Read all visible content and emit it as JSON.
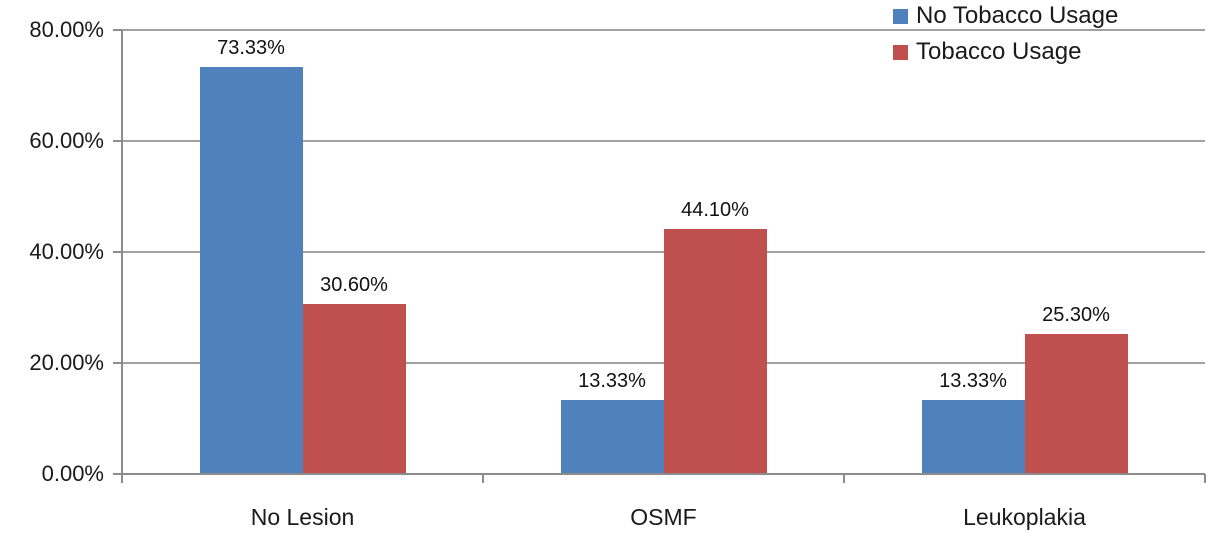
{
  "chart_data": {
    "type": "bar",
    "title": "",
    "categories": [
      "No Lesion",
      "OSMF",
      "Leukoplakia"
    ],
    "series": [
      {
        "name": "No Tobacco Usage",
        "color": "#4F81BD",
        "values": [
          73.33,
          13.33,
          13.33
        ],
        "labels": [
          "73.33%",
          "13.33%",
          "13.33%"
        ]
      },
      {
        "name": "Tobacco Usage",
        "color": "#C0504D",
        "values": [
          30.6,
          44.1,
          25.3
        ],
        "labels": [
          "30.60%",
          "44.10%",
          "25.30%"
        ]
      }
    ],
    "y_axis": {
      "min": 0,
      "max": 80,
      "step": 20,
      "tick_labels": [
        "0.00%",
        "20.00%",
        "40.00%",
        "60.00%",
        "80.00%"
      ]
    },
    "legend_position": "top-right",
    "grid": true,
    "colors": {
      "gridline": "#A0A0A0",
      "axis": "#8C8C8C",
      "text": "#1a1a1a"
    }
  }
}
